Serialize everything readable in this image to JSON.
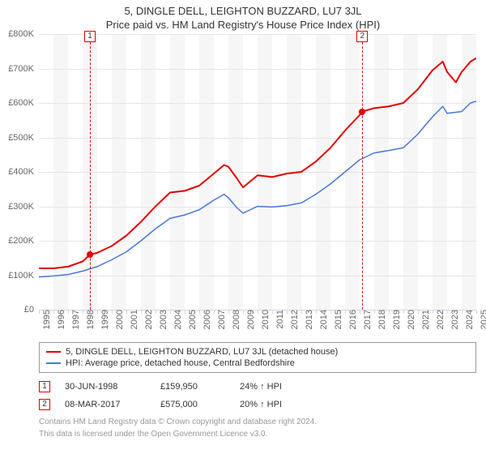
{
  "title": "5, DINGLE DELL, LEIGHTON BUZZARD, LU7 3JL",
  "subtitle": "Price paid vs. HM Land Registry's House Price Index (HPI)",
  "chart": {
    "type": "line",
    "background_color": "#ffffff",
    "plotband_color": "#f6f6f6",
    "grid_color": "#e6e6e6",
    "axis_color": "#ccd6eb",
    "ytick_fontsize": 11,
    "xtick_fontsize": 11,
    "xmin": 1995,
    "xmax": 2025,
    "ymin": 0,
    "ymax": 800000,
    "ytick_step": 100000,
    "ytick_prefix": "£",
    "ytick_suffix": "K",
    "xticks": [
      1995,
      1996,
      1997,
      1998,
      1999,
      2000,
      2001,
      2002,
      2003,
      2004,
      2005,
      2006,
      2007,
      2008,
      2009,
      2010,
      2011,
      2012,
      2013,
      2014,
      2015,
      2016,
      2017,
      2018,
      2019,
      2020,
      2021,
      2022,
      2023,
      2024,
      2025
    ],
    "series": [
      {
        "name": "property",
        "label": "5, DINGLE DELL, LEIGHTON BUZZARD, LU7 3JL (detached house)",
        "color": "#e30000",
        "line_width": 2,
        "data": [
          [
            1995,
            120000
          ],
          [
            1996,
            120000
          ],
          [
            1997,
            125000
          ],
          [
            1998,
            140000
          ],
          [
            1998.5,
            159950
          ],
          [
            1999,
            165000
          ],
          [
            2000,
            185000
          ],
          [
            2001,
            215000
          ],
          [
            2002,
            255000
          ],
          [
            2003,
            300000
          ],
          [
            2004,
            340000
          ],
          [
            2005,
            345000
          ],
          [
            2006,
            360000
          ],
          [
            2007,
            395000
          ],
          [
            2007.7,
            420000
          ],
          [
            2008,
            415000
          ],
          [
            2008.6,
            380000
          ],
          [
            2009,
            355000
          ],
          [
            2010,
            390000
          ],
          [
            2011,
            385000
          ],
          [
            2012,
            395000
          ],
          [
            2013,
            400000
          ],
          [
            2014,
            430000
          ],
          [
            2015,
            470000
          ],
          [
            2016,
            520000
          ],
          [
            2017,
            565000
          ],
          [
            2017.18,
            575000
          ],
          [
            2018,
            585000
          ],
          [
            2019,
            590000
          ],
          [
            2020,
            600000
          ],
          [
            2021,
            640000
          ],
          [
            2022,
            695000
          ],
          [
            2022.7,
            720000
          ],
          [
            2023,
            690000
          ],
          [
            2023.6,
            660000
          ],
          [
            2024,
            690000
          ],
          [
            2024.6,
            720000
          ],
          [
            2025,
            730000
          ]
        ]
      },
      {
        "name": "hpi",
        "label": "HPI: Average price, detached house, Central Bedfordshire",
        "color": "#4a77d4",
        "line_width": 1.5,
        "data": [
          [
            1995,
            95000
          ],
          [
            1996,
            98000
          ],
          [
            1997,
            102000
          ],
          [
            1998,
            112000
          ],
          [
            1999,
            125000
          ],
          [
            2000,
            145000
          ],
          [
            2001,
            168000
          ],
          [
            2002,
            200000
          ],
          [
            2003,
            235000
          ],
          [
            2004,
            265000
          ],
          [
            2005,
            275000
          ],
          [
            2006,
            290000
          ],
          [
            2007,
            318000
          ],
          [
            2007.7,
            335000
          ],
          [
            2008,
            325000
          ],
          [
            2008.6,
            295000
          ],
          [
            2009,
            280000
          ],
          [
            2010,
            300000
          ],
          [
            2011,
            298000
          ],
          [
            2012,
            302000
          ],
          [
            2013,
            310000
          ],
          [
            2014,
            335000
          ],
          [
            2015,
            365000
          ],
          [
            2016,
            400000
          ],
          [
            2017,
            435000
          ],
          [
            2018,
            455000
          ],
          [
            2019,
            462000
          ],
          [
            2020,
            470000
          ],
          [
            2021,
            510000
          ],
          [
            2022,
            560000
          ],
          [
            2022.7,
            590000
          ],
          [
            2023,
            570000
          ],
          [
            2024,
            575000
          ],
          [
            2024.6,
            600000
          ],
          [
            2025,
            605000
          ]
        ]
      }
    ],
    "markers": [
      {
        "idx": "1",
        "x": 1998.5,
        "y": 159950,
        "border_color": "#e30000"
      },
      {
        "idx": "2",
        "x": 2017.18,
        "y": 575000,
        "border_color": "#e30000"
      }
    ],
    "dot_color": "#e30000"
  },
  "legend": {
    "border_color": "#999999"
  },
  "sales": [
    {
      "idx": "1",
      "date": "30-JUN-1998",
      "price": "£159,950",
      "delta": "24% ↑ HPI",
      "border_color": "#e30000"
    },
    {
      "idx": "2",
      "date": "08-MAR-2017",
      "price": "£575,000",
      "delta": "20% ↑ HPI",
      "border_color": "#e30000"
    }
  ],
  "footnote_l1": "Contains HM Land Registry data © Crown copyright and database right 2024.",
  "footnote_l2": "This data is licensed under the Open Government Licence v3.0."
}
